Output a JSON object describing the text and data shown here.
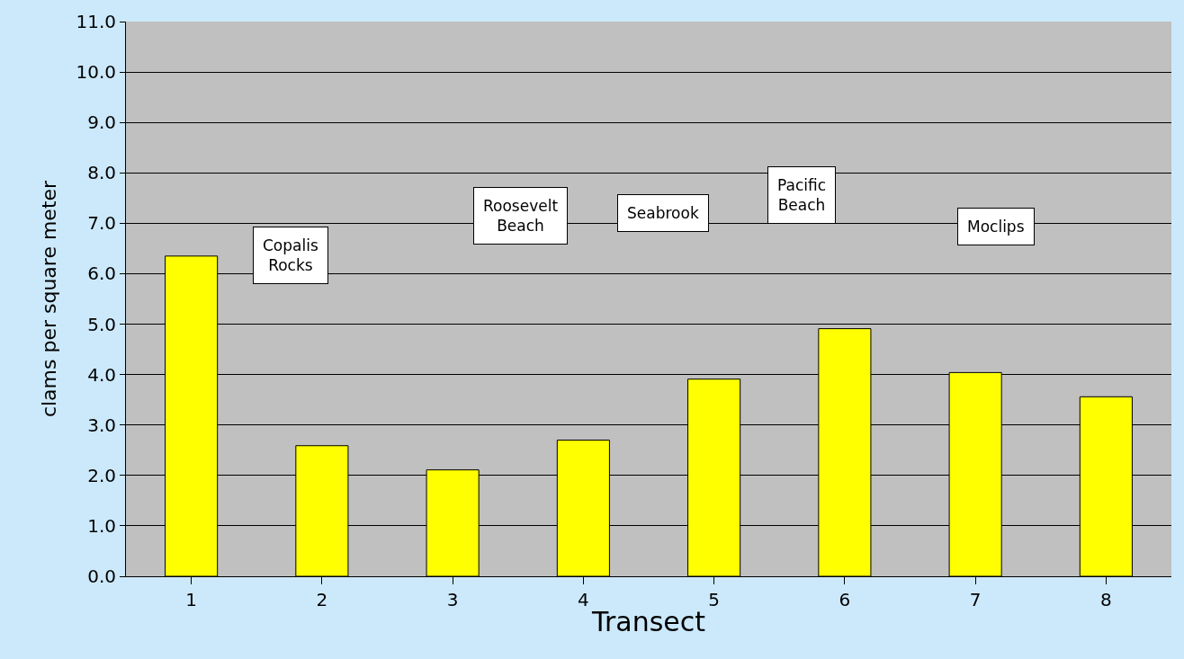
{
  "chart_data": {
    "type": "bar",
    "xlabel": "Transect",
    "ylabel": "clams per square meter",
    "categories": [
      "1",
      "2",
      "3",
      "4",
      "5",
      "6",
      "7",
      "8"
    ],
    "values": [
      6.35,
      2.59,
      2.11,
      2.7,
      3.91,
      4.91,
      4.04,
      3.56
    ],
    "color": "#ffff00",
    "ylim": [
      0,
      11
    ],
    "yticks": [
      {
        "value": 0,
        "label": "0.0"
      },
      {
        "value": 1,
        "label": "1.0"
      },
      {
        "value": 2,
        "label": "2.0"
      },
      {
        "value": 3,
        "label": "3.0"
      },
      {
        "value": 4,
        "label": "4.0"
      },
      {
        "value": 5,
        "label": "5.0"
      },
      {
        "value": 6,
        "label": "6.0"
      },
      {
        "value": 7,
        "label": "7.0"
      },
      {
        "value": 8,
        "label": "8.0"
      },
      {
        "value": 9,
        "label": "9.0"
      },
      {
        "value": 10,
        "label": "10.0"
      },
      {
        "value": 11,
        "label": "11.0"
      }
    ],
    "grid": "y",
    "annotations": [
      "Copalis\nRocks",
      "Roosevelt\nBeach",
      "Seabrook",
      "Pacific\nBeach",
      "Moclips"
    ]
  }
}
